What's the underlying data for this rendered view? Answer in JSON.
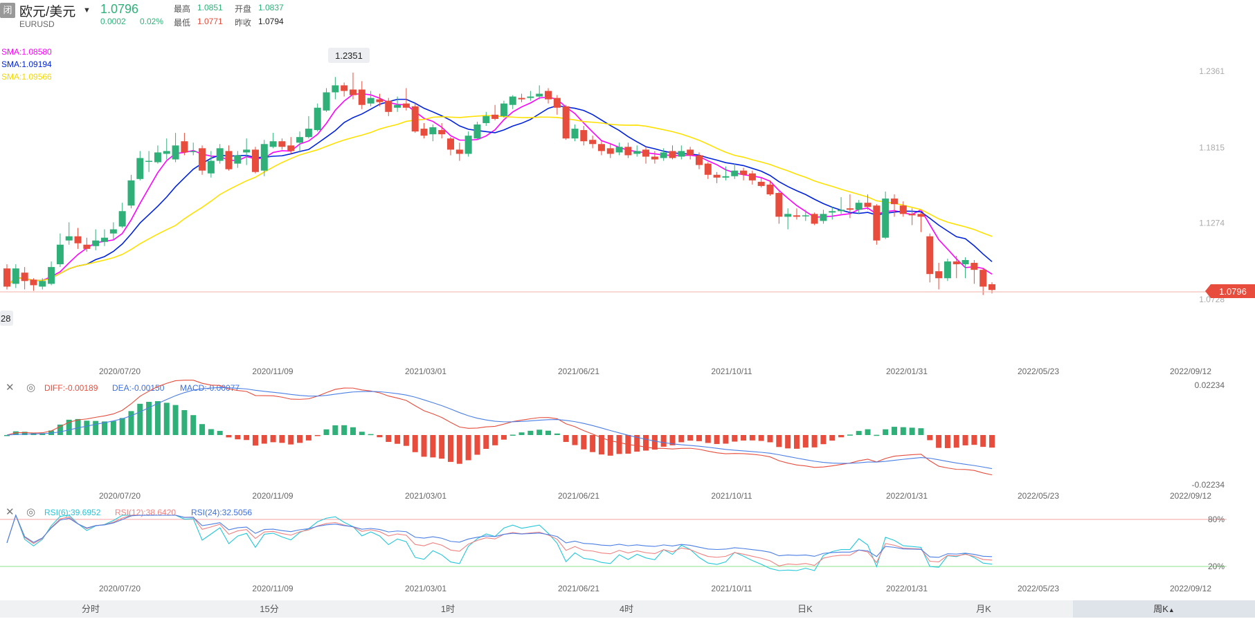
{
  "header": {
    "status_badge": "闭",
    "symbol_name": "欧元/美元",
    "symbol_code": "EURUSD",
    "last_price": "1.0796",
    "change": "0.0002",
    "change_pct": "0.02%",
    "high_label": "最高",
    "high_value": "1.0851",
    "open_label": "开盘",
    "open_value": "1.0837",
    "low_label": "最低",
    "low_value": "1.0771",
    "prev_close_label": "昨收",
    "prev_close_value": "1.0794"
  },
  "main_chart": {
    "sma1": "SMA:1.08580",
    "sma2": "SMA:1.09194",
    "sma3": "SMA:1.09566",
    "max_callout": "1.2351",
    "min_callout": "28",
    "price_tag": "1.0796",
    "y_ticks": [
      "1.2361",
      "1.1815",
      "1.1274",
      "1.0728"
    ],
    "x_ticks": [
      "2020/07/20",
      "2020/11/09",
      "2021/03/01",
      "2021/06/21",
      "2021/10/11",
      "2022/01/31",
      "2022/05/23",
      "2022/09/12"
    ]
  },
  "macd_panel": {
    "diff": "DIFF:-0.00189",
    "dea": "DEA:-0.00150",
    "macd": "MACD:-0.00077",
    "y_top": "0.02234",
    "y_bottom": "-0.02234"
  },
  "rsi_panel": {
    "rsi6": "RSI(6):39.6952",
    "rsi12": "RSI(12):38.6420",
    "rsi24": "RSI(24):32.5056",
    "y_top": "80%",
    "y_bottom": "20%"
  },
  "tabs": [
    "分时",
    "15分",
    "1时",
    "4时",
    "日K",
    "月K",
    "周K"
  ],
  "active_tab_index": 6,
  "colors": {
    "up": "#2fb079",
    "down": "#e74c3c",
    "sma1": "#ff00ff",
    "sma2": "#0022dd",
    "sma3": "#ffe000"
  },
  "chart_data": {
    "type": "candlestick",
    "series": "EURUSD weekly",
    "ylim": [
      1.0728,
      1.2361
    ],
    "candles": [
      [
        1.095,
        1.082,
        1.098,
        1.08
      ],
      [
        1.084,
        1.095,
        1.098,
        1.081
      ],
      [
        1.092,
        1.086,
        1.096,
        1.08
      ],
      [
        1.087,
        1.083,
        1.088,
        1.079
      ],
      [
        1.082,
        1.086,
        1.088,
        1.08
      ],
      [
        1.084,
        1.096,
        1.1,
        1.083
      ],
      [
        1.098,
        1.112,
        1.12,
        1.096
      ],
      [
        1.115,
        1.118,
        1.128,
        1.112
      ],
      [
        1.118,
        1.113,
        1.124,
        1.109
      ],
      [
        1.112,
        1.109,
        1.117,
        1.107
      ],
      [
        1.111,
        1.115,
        1.123,
        1.108
      ],
      [
        1.114,
        1.117,
        1.123,
        1.111
      ],
      [
        1.12,
        1.123,
        1.128,
        1.116
      ],
      [
        1.125,
        1.136,
        1.142,
        1.124
      ],
      [
        1.14,
        1.158,
        1.162,
        1.138
      ],
      [
        1.159,
        1.174,
        1.179,
        1.158
      ],
      [
        1.172,
        1.172,
        1.179,
        1.164
      ],
      [
        1.171,
        1.178,
        1.183,
        1.17
      ],
      [
        1.177,
        1.179,
        1.188,
        1.173
      ],
      [
        1.173,
        1.183,
        1.192,
        1.171
      ],
      [
        1.186,
        1.178,
        1.192,
        1.176
      ],
      [
        1.179,
        1.179,
        1.185,
        1.176
      ],
      [
        1.181,
        1.165,
        1.183,
        1.162
      ],
      [
        1.163,
        1.172,
        1.179,
        1.16
      ],
      [
        1.172,
        1.181,
        1.184,
        1.17
      ],
      [
        1.179,
        1.166,
        1.183,
        1.165
      ],
      [
        1.17,
        1.176,
        1.179,
        1.167
      ],
      [
        1.178,
        1.18,
        1.188,
        1.169
      ],
      [
        1.18,
        1.164,
        1.182,
        1.163
      ],
      [
        1.165,
        1.184,
        1.187,
        1.161
      ],
      [
        1.182,
        1.186,
        1.192,
        1.181
      ],
      [
        1.186,
        1.182,
        1.188,
        1.18
      ],
      [
        1.183,
        1.179,
        1.189,
        1.177
      ],
      [
        1.185,
        1.189,
        1.193,
        1.178
      ],
      [
        1.189,
        1.195,
        1.204,
        1.188
      ],
      [
        1.194,
        1.21,
        1.213,
        1.193
      ],
      [
        1.208,
        1.221,
        1.224,
        1.207
      ],
      [
        1.221,
        1.226,
        1.232,
        1.216
      ],
      [
        1.226,
        1.222,
        1.228,
        1.218
      ],
      [
        1.223,
        1.219,
        1.2351,
        1.216
      ],
      [
        1.223,
        1.212,
        1.229,
        1.209
      ],
      [
        1.213,
        1.217,
        1.222,
        1.211
      ],
      [
        1.216,
        1.214,
        1.22,
        1.211
      ],
      [
        1.215,
        1.207,
        1.217,
        1.204
      ],
      [
        1.21,
        1.212,
        1.218,
        1.207
      ],
      [
        1.213,
        1.21,
        1.224,
        1.208
      ],
      [
        1.211,
        1.193,
        1.214,
        1.192
      ],
      [
        1.195,
        1.19,
        1.199,
        1.188
      ],
      [
        1.191,
        1.196,
        1.198,
        1.186
      ],
      [
        1.194,
        1.191,
        1.199,
        1.188
      ],
      [
        1.188,
        1.18,
        1.189,
        1.176
      ],
      [
        1.18,
        1.177,
        1.185,
        1.172
      ],
      [
        1.177,
        1.19,
        1.193,
        1.175
      ],
      [
        1.188,
        1.198,
        1.2,
        1.187
      ],
      [
        1.199,
        1.204,
        1.207,
        1.197
      ],
      [
        1.205,
        1.202,
        1.212,
        1.201
      ],
      [
        1.204,
        1.213,
        1.215,
        1.203
      ],
      [
        1.212,
        1.218,
        1.219,
        1.209
      ],
      [
        1.217,
        1.216,
        1.22,
        1.214
      ],
      [
        1.217,
        1.218,
        1.222,
        1.215
      ],
      [
        1.218,
        1.22,
        1.226,
        1.216
      ],
      [
        1.222,
        1.216,
        1.224,
        1.213
      ],
      [
        1.217,
        1.21,
        1.219,
        1.205
      ],
      [
        1.211,
        1.188,
        1.212,
        1.187
      ],
      [
        1.188,
        1.195,
        1.198,
        1.186
      ],
      [
        1.194,
        1.186,
        1.197,
        1.183
      ],
      [
        1.187,
        1.184,
        1.19,
        1.181
      ],
      [
        1.184,
        1.179,
        1.186,
        1.176
      ],
      [
        1.181,
        1.177,
        1.184,
        1.174
      ],
      [
        1.178,
        1.182,
        1.185,
        1.176
      ],
      [
        1.182,
        1.176,
        1.185,
        1.174
      ],
      [
        1.177,
        1.179,
        1.183,
        1.175
      ],
      [
        1.18,
        1.175,
        1.182,
        1.17
      ],
      [
        1.175,
        1.173,
        1.179,
        1.17
      ],
      [
        1.174,
        1.178,
        1.181,
        1.172
      ],
      [
        1.179,
        1.174,
        1.183,
        1.173
      ],
      [
        1.175,
        1.179,
        1.183,
        1.173
      ],
      [
        1.18,
        1.176,
        1.182,
        1.173
      ],
      [
        1.176,
        1.169,
        1.178,
        1.166
      ],
      [
        1.17,
        1.162,
        1.171,
        1.159
      ],
      [
        1.162,
        1.16,
        1.164,
        1.156
      ],
      [
        1.16,
        1.161,
        1.168,
        1.158
      ],
      [
        1.161,
        1.165,
        1.17,
        1.159
      ],
      [
        1.165,
        1.162,
        1.167,
        1.158
      ],
      [
        1.163,
        1.158,
        1.165,
        1.155
      ],
      [
        1.157,
        1.154,
        1.16,
        1.153
      ],
      [
        1.155,
        1.148,
        1.158,
        1.147
      ],
      [
        1.149,
        1.132,
        1.15,
        1.127
      ],
      [
        1.132,
        1.134,
        1.138,
        1.123
      ],
      [
        1.133,
        1.132,
        1.138,
        1.13
      ],
      [
        1.133,
        1.133,
        1.137,
        1.129
      ],
      [
        1.134,
        1.127,
        1.135,
        1.126
      ],
      [
        1.129,
        1.134,
        1.137,
        1.127
      ],
      [
        1.135,
        1.136,
        1.139,
        1.13
      ],
      [
        1.136,
        1.137,
        1.146,
        1.134
      ],
      [
        1.138,
        1.137,
        1.148,
        1.131
      ],
      [
        1.137,
        1.142,
        1.144,
        1.134
      ],
      [
        1.142,
        1.139,
        1.148,
        1.137
      ],
      [
        1.14,
        1.115,
        1.141,
        1.112
      ],
      [
        1.117,
        1.145,
        1.15,
        1.116
      ],
      [
        1.145,
        1.141,
        1.148,
        1.132
      ],
      [
        1.14,
        1.134,
        1.143,
        1.132
      ],
      [
        1.134,
        1.133,
        1.138,
        1.126
      ],
      [
        1.134,
        1.132,
        1.135,
        1.121
      ],
      [
        1.118,
        1.091,
        1.12,
        1.085
      ],
      [
        1.093,
        1.088,
        1.099,
        1.08
      ],
      [
        1.088,
        1.1,
        1.102,
        1.086
      ],
      [
        1.1,
        1.098,
        1.104,
        1.088
      ],
      [
        1.098,
        1.101,
        1.103,
        1.088
      ],
      [
        1.099,
        1.094,
        1.101,
        1.084
      ],
      [
        1.094,
        1.082,
        1.095,
        1.076
      ],
      [
        1.0837,
        1.0796,
        1.0851,
        1.0771
      ]
    ]
  }
}
